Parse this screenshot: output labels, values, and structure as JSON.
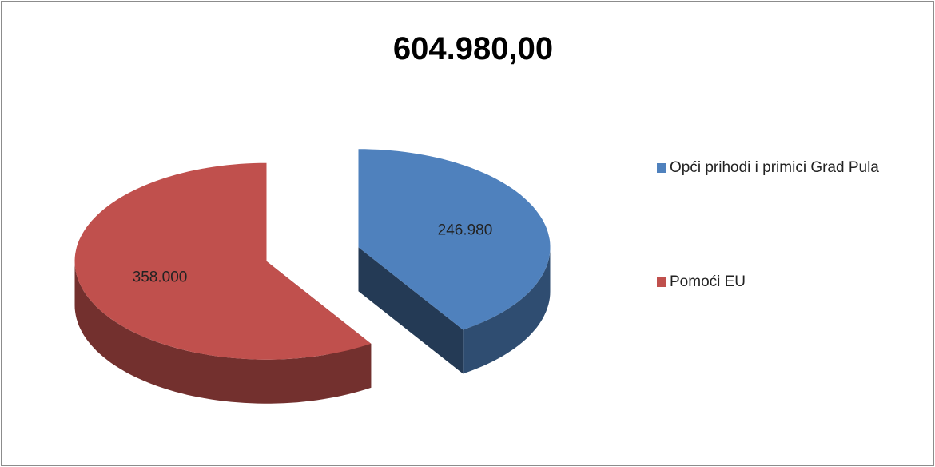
{
  "chart_data": {
    "type": "pie",
    "title": "604.980,00",
    "categories": [
      "Opći prihodi i primici Grad Pula",
      "Pomoći EU"
    ],
    "values": [
      246980,
      358000
    ],
    "value_labels": [
      "246.980",
      "358.000"
    ],
    "colors": [
      "#4f81bd",
      "#c0504d"
    ],
    "legend": "right"
  }
}
